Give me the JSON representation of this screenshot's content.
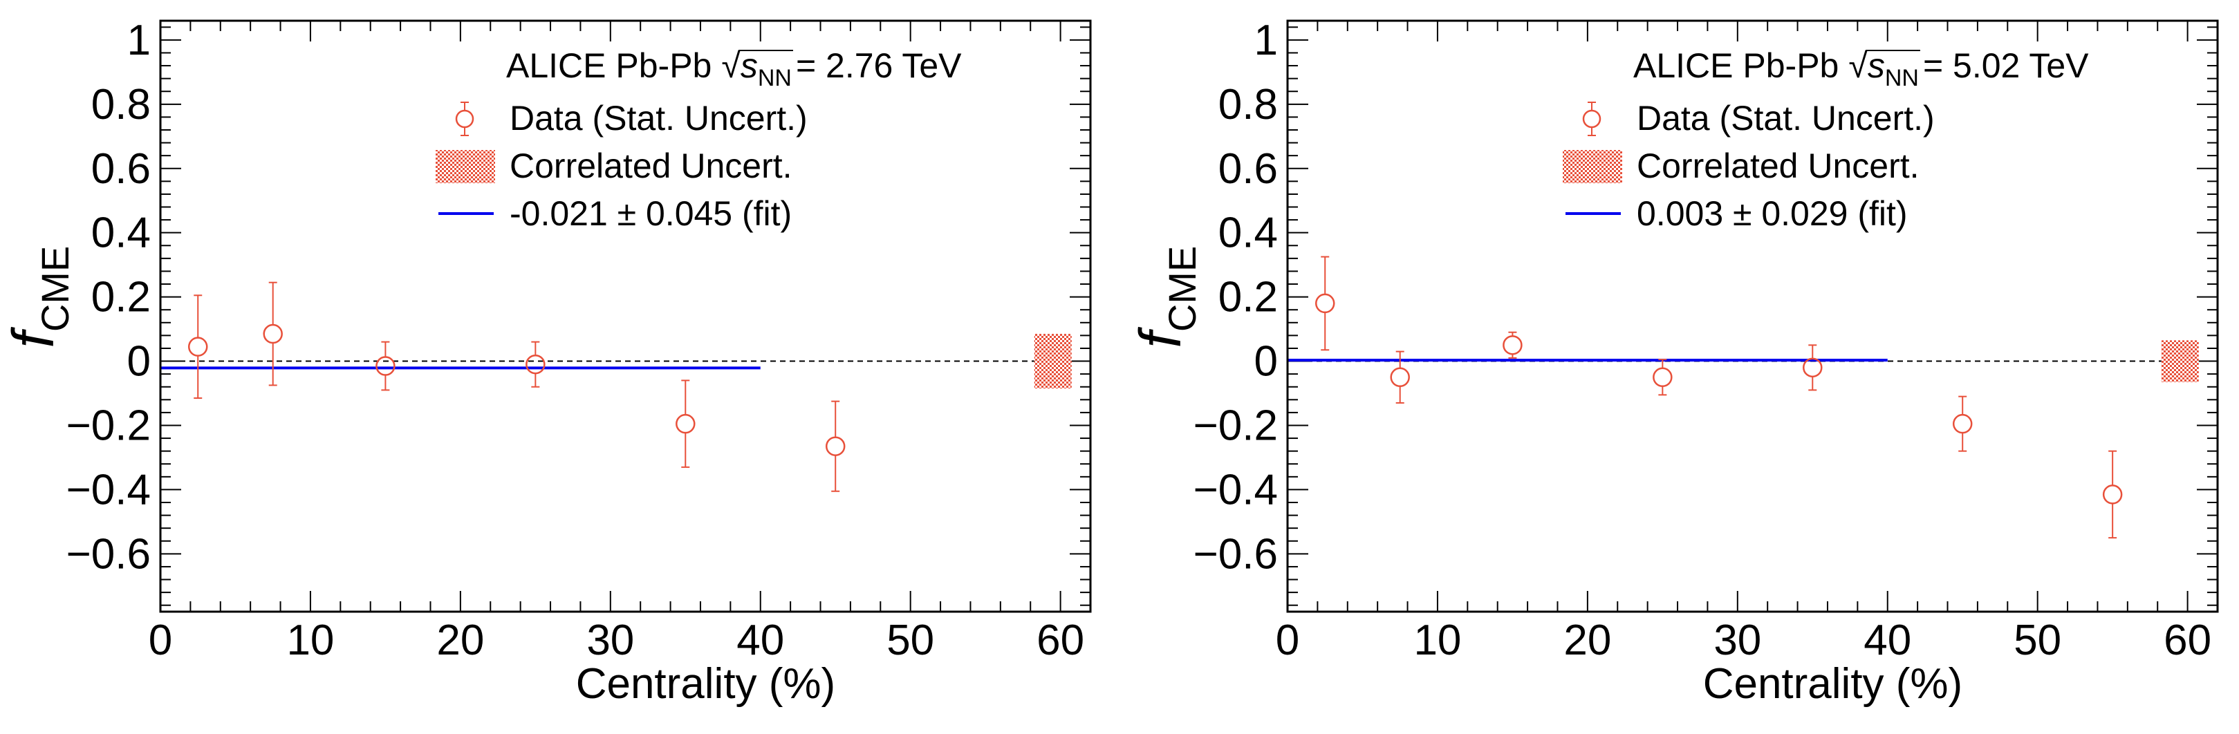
{
  "chart_data": [
    {
      "type": "scatter",
      "panel": "left",
      "title": "ALICE Pb-Pb √sNN = 2.76 TeV",
      "header": {
        "experiment": "ALICE Pb-Pb",
        "energy_symbol": "s",
        "energy_sub": "NN",
        "energy_value": "= 2.76 TeV"
      },
      "xlabel": "Centrality (%)",
      "ylabel": "f",
      "ylabel_sub": "CME",
      "xlim": [
        0,
        62
      ],
      "ylim": [
        -0.78,
        1.06
      ],
      "xticks": [
        0,
        10,
        20,
        30,
        40,
        50,
        60
      ],
      "xtick_labels": [
        "0",
        "10",
        "20",
        "30",
        "40",
        "50",
        "60"
      ],
      "yticks": [
        1,
        0.8,
        0.6,
        0.4,
        0.2,
        0,
        -0.2,
        -0.4,
        -0.6
      ],
      "ytick_labels": [
        "1",
        "0.8",
        "0.6",
        "0.4",
        "0.2",
        "0",
        "−0.2",
        "−0.4",
        "−0.6"
      ],
      "legend": {
        "data_label": "Data (Stat. Uncert.)",
        "corr_label": "Correlated Uncert.",
        "fit_label": "-0.021 ± 0.045 (fit)"
      },
      "series": [
        {
          "name": "Data (Stat. Uncert.)",
          "x": [
            2.5,
            7.5,
            15,
            25,
            35,
            45
          ],
          "y": [
            0.045,
            0.085,
            -0.015,
            -0.01,
            -0.195,
            -0.265
          ],
          "err": [
            0.16,
            0.16,
            0.075,
            0.07,
            0.135,
            0.14
          ]
        }
      ],
      "fit": {
        "value": -0.021,
        "error": 0.045,
        "x_range": [
          0,
          40
        ]
      },
      "correlated_uncertainty": {
        "x": 59.5,
        "low": -0.085,
        "high": 0.085
      },
      "reference_line_y": 0
    },
    {
      "type": "scatter",
      "panel": "right",
      "title": "ALICE Pb-Pb √sNN = 5.02 TeV",
      "header": {
        "experiment": "ALICE Pb-Pb",
        "energy_symbol": "s",
        "energy_sub": "NN",
        "energy_value": "= 5.02 TeV"
      },
      "xlabel": "Centrality (%)",
      "ylabel": "f",
      "ylabel_sub": "CME",
      "xlim": [
        0,
        62
      ],
      "ylim": [
        -0.78,
        1.06
      ],
      "xticks": [
        0,
        10,
        20,
        30,
        40,
        50,
        60
      ],
      "xtick_labels": [
        "0",
        "10",
        "20",
        "30",
        "40",
        "50",
        "60"
      ],
      "yticks": [
        1,
        0.8,
        0.6,
        0.4,
        0.2,
        0,
        -0.2,
        -0.4,
        -0.6
      ],
      "ytick_labels": [
        "1",
        "0.8",
        "0.6",
        "0.4",
        "0.2",
        "0",
        "−0.2",
        "−0.4",
        "−0.6"
      ],
      "legend": {
        "data_label": "Data (Stat. Uncert.)",
        "corr_label": "Correlated Uncert.",
        "fit_label": "0.003 ± 0.029 (fit)"
      },
      "series": [
        {
          "name": "Data (Stat. Uncert.)",
          "x": [
            2.5,
            7.5,
            15,
            25,
            35,
            45,
            55
          ],
          "y": [
            0.18,
            -0.05,
            0.05,
            -0.05,
            -0.02,
            -0.195,
            -0.415
          ],
          "err": [
            0.145,
            0.08,
            0.04,
            0.055,
            0.07,
            0.085,
            0.135
          ]
        }
      ],
      "fit": {
        "value": 0.003,
        "error": 0.029,
        "x_range": [
          0,
          40
        ]
      },
      "correlated_uncertainty": {
        "x": 59.5,
        "low": -0.065,
        "high": 0.065
      },
      "reference_line_y": 0
    }
  ]
}
